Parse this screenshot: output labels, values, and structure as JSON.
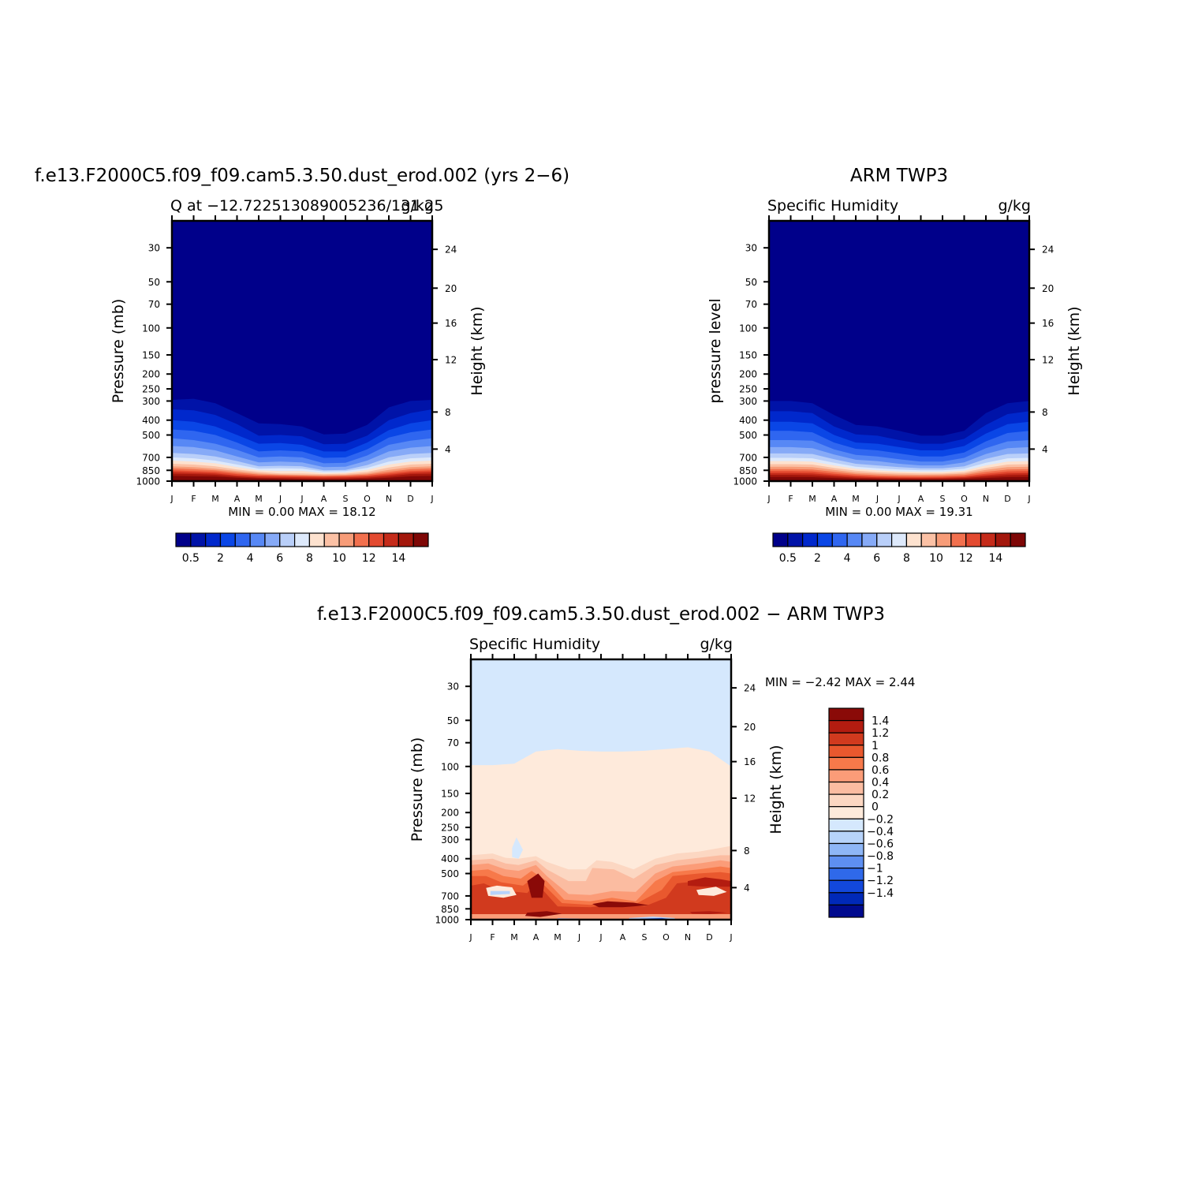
{
  "chart_data": [
    {
      "type": "heatmap",
      "title": "f.e13.F2000C5.f09_f09.cam5.3.50.dust_erod.002 (yrs 2−6)",
      "subtitle_left": "Q at −12.722513089005236/131.25",
      "subtitle_right": "g/kg",
      "ylabel": "Pressure (mb)",
      "ylabel_right": "Height (km)",
      "x_ticks": [
        "J",
        "F",
        "M",
        "A",
        "M",
        "J",
        "J",
        "A",
        "S",
        "O",
        "N",
        "D",
        "J"
      ],
      "y_ticks": [
        "30",
        "50",
        "70",
        "100",
        "150",
        "200",
        "250",
        "300",
        "400",
        "500",
        "700",
        "850",
        "1000"
      ],
      "y_ticks_right": [
        "24",
        "20",
        "16",
        "12",
        "8",
        "4"
      ],
      "min_max_text": "MIN =     0.00  MAX =     18.12",
      "colorbar_labels": [
        "0.5",
        "2",
        "4",
        "6",
        "8",
        "10",
        "12",
        "14"
      ],
      "colorbar_colors": [
        "#00008a",
        "#0013a8",
        "#0028cc",
        "#0a46e6",
        "#2f66f0",
        "#5788f5",
        "#86aaf7",
        "#b9cff9",
        "#dde9fb",
        "#fde2cf",
        "#fbc1a5",
        "#f79c78",
        "#f2704e",
        "#e34a30",
        "#c52b1a",
        "#a3170c",
        "#7e0706"
      ],
      "time": [
        0,
        1,
        2,
        3,
        4,
        5,
        6,
        7,
        8,
        9,
        10,
        11,
        12
      ],
      "contour_levels": [
        0.5,
        1,
        2,
        3,
        4,
        5,
        6,
        7,
        8,
        9,
        10,
        11,
        12,
        13,
        14,
        15
      ],
      "bounds_mb": [
        [
          295,
          290,
          310,
          360,
          420,
          425,
          440,
          495,
          490,
          430,
          330,
          300,
          295
        ],
        [
          340,
          345,
          370,
          425,
          505,
          500,
          510,
          575,
          570,
          505,
          400,
          360,
          340
        ],
        [
          400,
          410,
          440,
          500,
          570,
          565,
          580,
          640,
          640,
          560,
          465,
          420,
          400
        ],
        [
          460,
          470,
          500,
          560,
          640,
          630,
          640,
          705,
          700,
          620,
          520,
          480,
          460
        ],
        [
          525,
          540,
          570,
          625,
          700,
          690,
          700,
          765,
          760,
          680,
          580,
          545,
          525
        ],
        [
          590,
          600,
          630,
          690,
          755,
          745,
          755,
          810,
          805,
          735,
          640,
          605,
          590
        ],
        [
          655,
          665,
          690,
          740,
          800,
          795,
          800,
          850,
          845,
          785,
          700,
          665,
          655
        ],
        [
          700,
          710,
          735,
          780,
          830,
          825,
          830,
          865,
          860,
          820,
          745,
          710,
          700
        ],
        [
          735,
          745,
          765,
          810,
          850,
          860,
          860,
          885,
          880,
          845,
          780,
          745,
          735
        ],
        [
          770,
          780,
          800,
          840,
          870,
          890,
          890,
          900,
          895,
          870,
          815,
          780,
          770
        ],
        [
          800,
          810,
          830,
          860,
          890,
          905,
          910,
          915,
          910,
          890,
          845,
          810,
          800
        ],
        [
          825,
          835,
          850,
          880,
          905,
          915,
          920,
          925,
          920,
          905,
          870,
          835,
          825
        ],
        [
          850,
          860,
          870,
          900,
          920,
          925,
          930,
          935,
          930,
          920,
          890,
          860,
          850
        ],
        [
          870,
          880,
          890,
          920,
          935,
          940,
          945,
          948,
          945,
          935,
          910,
          880,
          870
        ],
        [
          895,
          900,
          910,
          935,
          950,
          955,
          960,
          962,
          960,
          950,
          930,
          900,
          895
        ],
        [
          925,
          930,
          935,
          950,
          962,
          968,
          972,
          975,
          972,
          965,
          950,
          930,
          925
        ]
      ]
    },
    {
      "type": "heatmap",
      "title": "ARM TWP3",
      "subtitle_left": "Specific Humidity",
      "subtitle_right": "g/kg",
      "ylabel": "pressure level",
      "ylabel_right": "Height (km)",
      "x_ticks": [
        "J",
        "F",
        "M",
        "A",
        "M",
        "J",
        "J",
        "A",
        "S",
        "O",
        "N",
        "D",
        "J"
      ],
      "y_ticks": [
        "30",
        "50",
        "70",
        "100",
        "150",
        "200",
        "250",
        "300",
        "400",
        "500",
        "700",
        "850",
        "1000"
      ],
      "y_ticks_right": [
        "24",
        "20",
        "16",
        "12",
        "8",
        "4"
      ],
      "min_max_text": "MIN =     0.00  MAX =     19.31",
      "colorbar_labels": [
        "0.5",
        "2",
        "4",
        "6",
        "8",
        "10",
        "12",
        "14"
      ],
      "colorbar_colors": [
        "#00008a",
        "#0013a8",
        "#0028cc",
        "#0a46e6",
        "#2f66f0",
        "#5788f5",
        "#86aaf7",
        "#b9cff9",
        "#dde9fb",
        "#fde2cf",
        "#fbc1a5",
        "#f79c78",
        "#f2704e",
        "#e34a30",
        "#c52b1a",
        "#a3170c",
        "#7e0706"
      ],
      "time": [
        0,
        1,
        2,
        3,
        4,
        5,
        6,
        7,
        8,
        9,
        10,
        11,
        12
      ],
      "contour_levels": [
        0.5,
        1,
        2,
        3,
        4,
        5,
        6,
        7,
        8,
        9,
        10,
        11,
        12,
        13,
        14,
        15
      ],
      "bounds_mb": [
        [
          300,
          300,
          310,
          370,
          430,
          440,
          470,
          505,
          505,
          470,
          360,
          310,
          300
        ],
        [
          350,
          350,
          360,
          440,
          495,
          505,
          540,
          570,
          570,
          530,
          430,
          365,
          350
        ],
        [
          410,
          410,
          420,
          500,
          560,
          570,
          600,
          630,
          630,
          590,
          490,
          425,
          410
        ],
        [
          470,
          470,
          480,
          560,
          615,
          630,
          660,
          690,
          690,
          650,
          550,
          485,
          470
        ],
        [
          540,
          540,
          545,
          620,
          675,
          690,
          720,
          745,
          745,
          705,
          610,
          550,
          540
        ],
        [
          600,
          600,
          610,
          670,
          725,
          740,
          770,
          790,
          790,
          755,
          665,
          610,
          600
        ],
        [
          660,
          660,
          665,
          720,
          770,
          790,
          810,
          825,
          825,
          800,
          715,
          665,
          660
        ],
        [
          705,
          705,
          710,
          760,
          805,
          825,
          840,
          850,
          850,
          830,
          760,
          710,
          705
        ],
        [
          740,
          740,
          745,
          790,
          830,
          850,
          865,
          870,
          870,
          855,
          790,
          745,
          740
        ],
        [
          775,
          775,
          780,
          820,
          855,
          875,
          885,
          890,
          890,
          875,
          820,
          780,
          775
        ],
        [
          805,
          805,
          810,
          845,
          880,
          895,
          905,
          910,
          905,
          895,
          845,
          810,
          805
        ],
        [
          835,
          835,
          840,
          870,
          900,
          915,
          922,
          925,
          922,
          912,
          870,
          840,
          835
        ],
        [
          860,
          860,
          865,
          895,
          918,
          930,
          938,
          940,
          938,
          928,
          895,
          865,
          860
        ],
        [
          885,
          885,
          890,
          915,
          935,
          945,
          950,
          952,
          950,
          942,
          915,
          890,
          885
        ],
        [
          910,
          910,
          915,
          935,
          950,
          958,
          962,
          964,
          962,
          955,
          935,
          915,
          910
        ],
        [
          940,
          940,
          942,
          955,
          965,
          970,
          973,
          975,
          973,
          968,
          955,
          942,
          940
        ]
      ]
    },
    {
      "type": "heatmap",
      "title": "f.e13.F2000C5.f09_f09.cam5.3.50.dust_erod.002 − ARM TWP3",
      "subtitle_left": "Specific Humidity",
      "subtitle_right": "g/kg",
      "ylabel": "Pressure (mb)",
      "ylabel_right": "Height (km)",
      "x_ticks": [
        "J",
        "F",
        "M",
        "A",
        "M",
        "J",
        "J",
        "A",
        "S",
        "O",
        "N",
        "D",
        "J"
      ],
      "y_ticks": [
        "30",
        "50",
        "70",
        "100",
        "150",
        "200",
        "250",
        "300",
        "400",
        "500",
        "700",
        "850",
        "1000"
      ],
      "y_ticks_right": [
        "24",
        "20",
        "16",
        "12",
        "8",
        "4"
      ],
      "min_max_text": "MIN =     −2.42  MAX =      2.44",
      "colorbar_labels": [
        "1.4",
        "1.2",
        "1",
        "0.8",
        "0.6",
        "0.4",
        "0.2",
        "0",
        "−0.2",
        "−0.4",
        "−0.6",
        "−0.8",
        "−1",
        "−1.2",
        "−1.4"
      ],
      "colorbar_colors": [
        "#8a0a08",
        "#b31c10",
        "#d13a1e",
        "#e9582e",
        "#f7794a",
        "#fb9c78",
        "#fbbca1",
        "#fcd7c2",
        "#feeadb",
        "#d5e8fd",
        "#b7d3fa",
        "#8eb6f6",
        "#5e8ff1",
        "#2f69ea",
        "#1248dc",
        "#0029b8",
        "#000a8e"
      ],
      "upper_boundary_mb": [
        98,
        98,
        96,
        80,
        77,
        79,
        80,
        80,
        79,
        77,
        75,
        80,
        100
      ],
      "time": [
        0,
        1,
        2,
        3,
        4,
        5,
        6,
        7,
        8,
        9,
        10,
        11,
        12
      ]
    }
  ]
}
